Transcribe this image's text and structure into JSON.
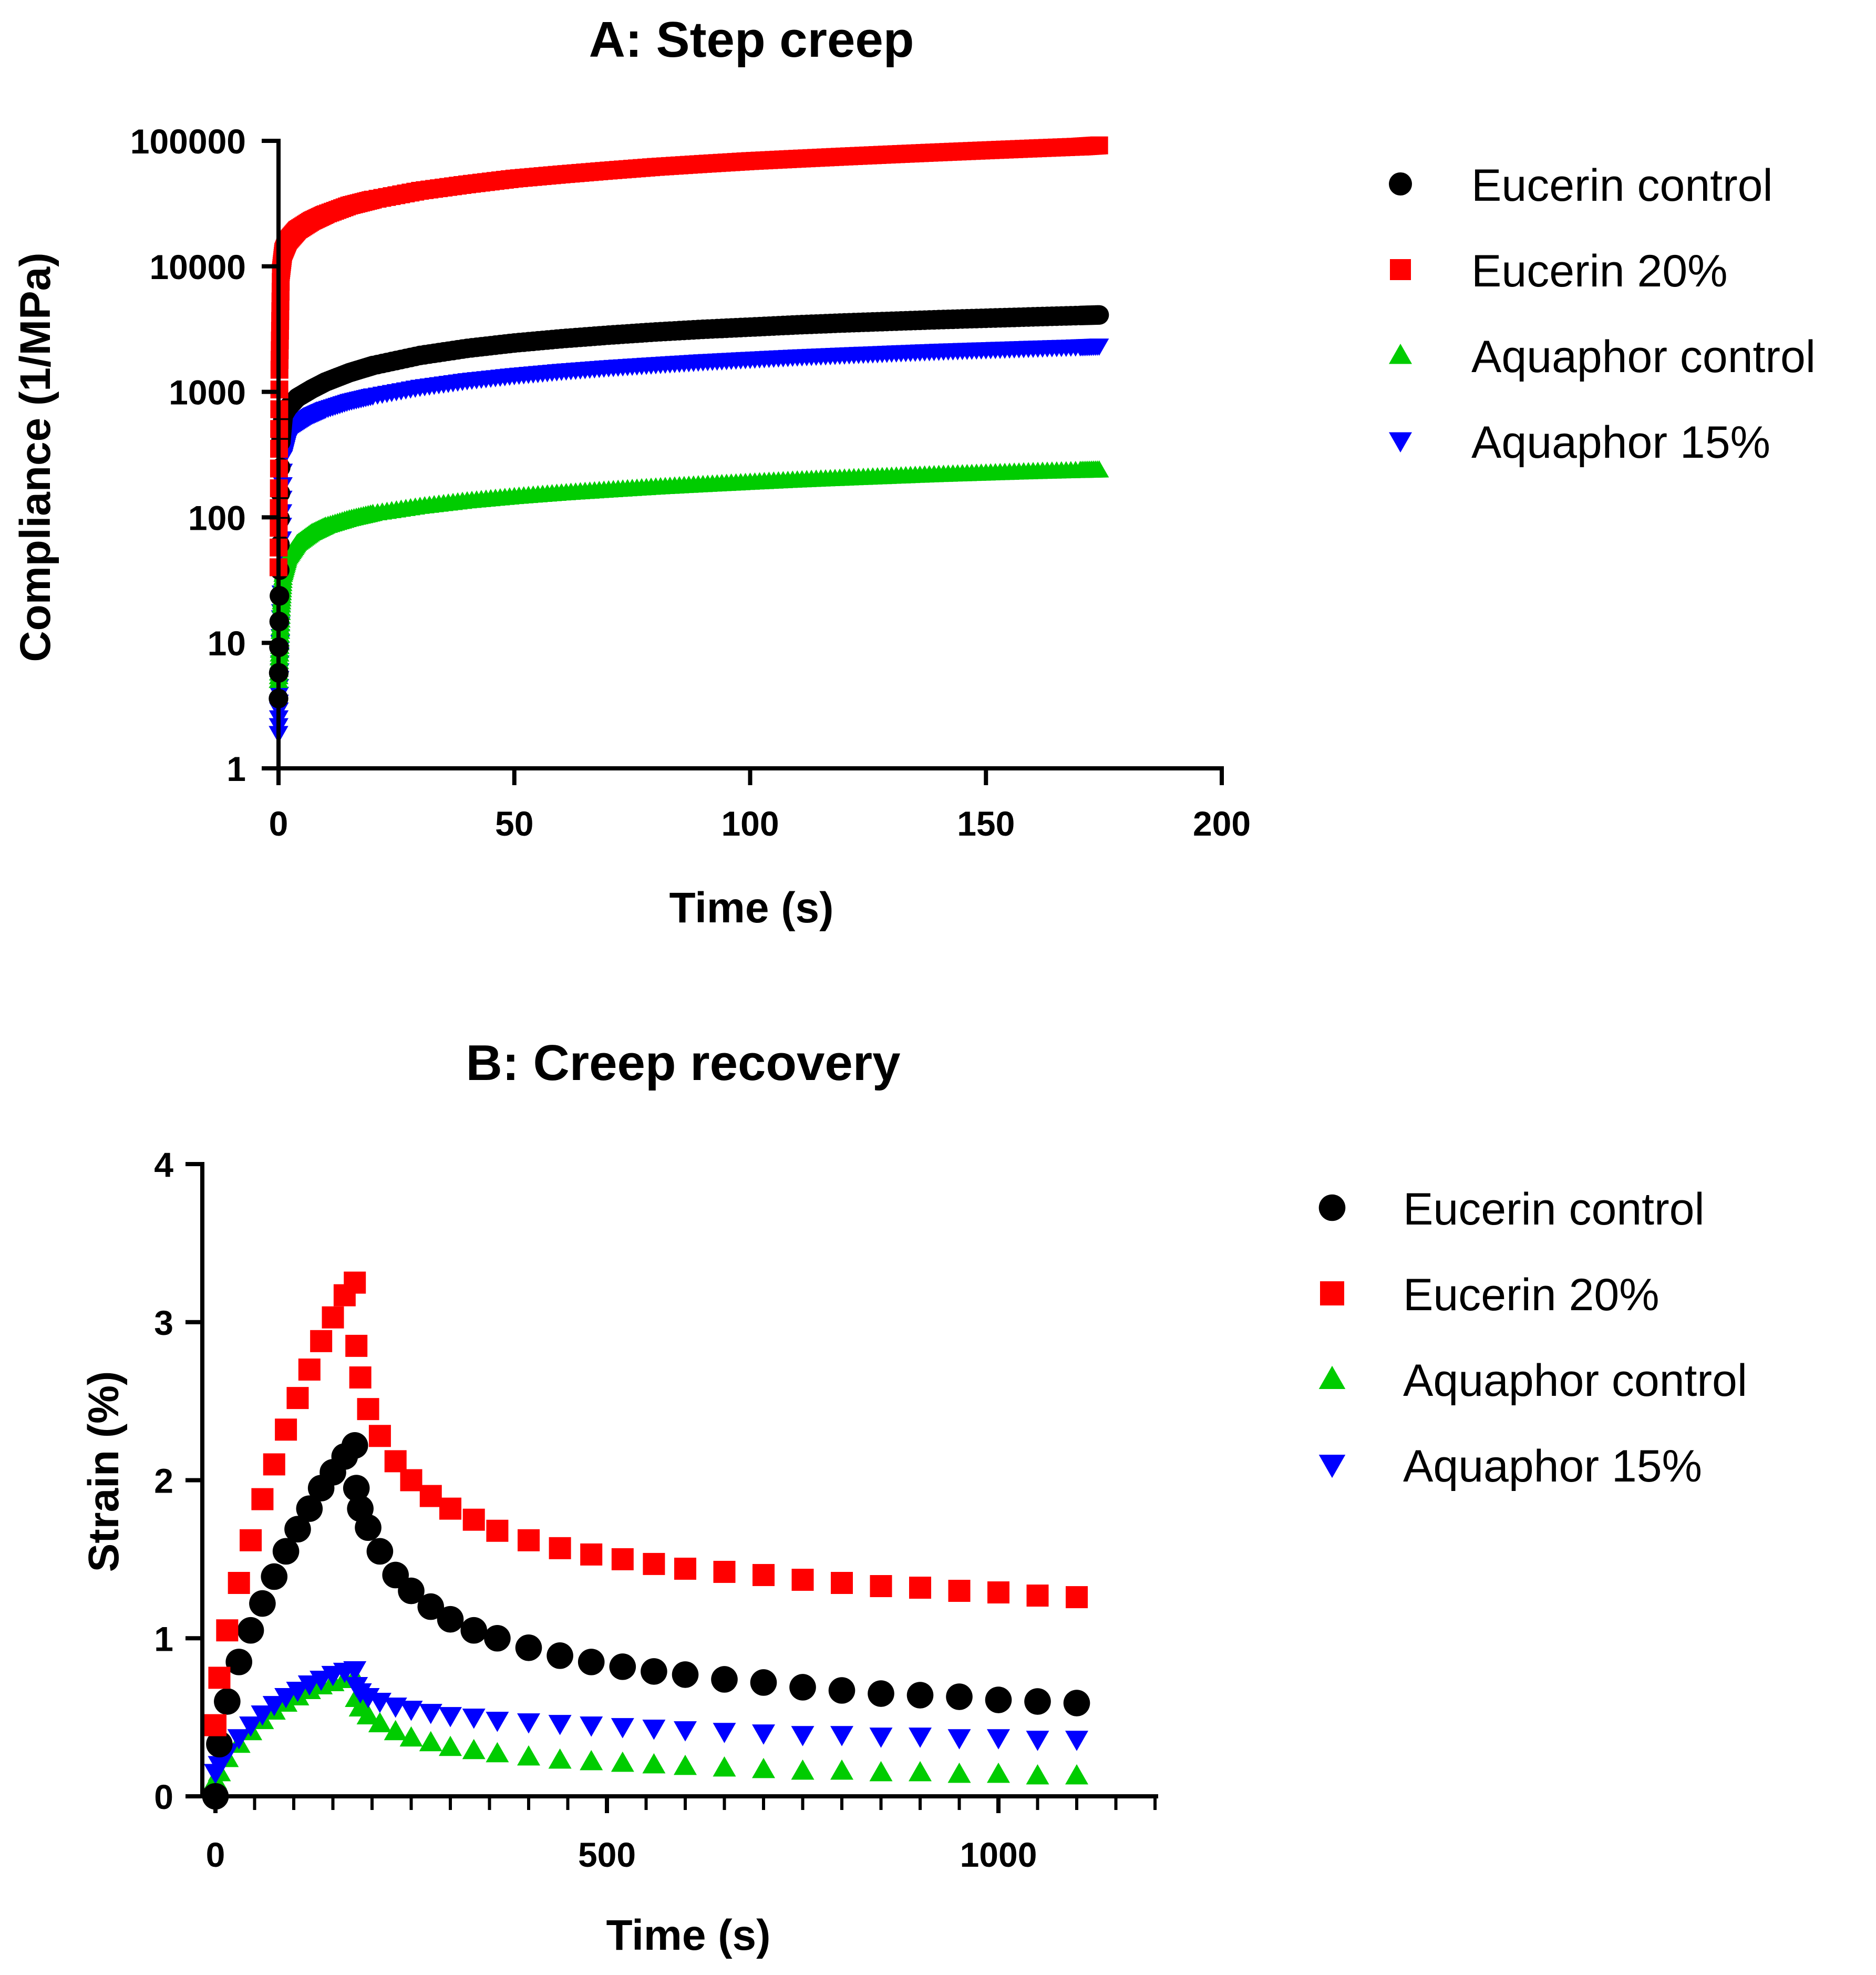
{
  "colors": {
    "eucerin_control": "#000000",
    "eucerin_20": "#ff0000",
    "aquaphor_control": "#00cc00",
    "aquaphor_15": "#0000ff"
  },
  "chart_data": [
    {
      "type": "scatter",
      "title": "A: Step creep",
      "xlabel": "Time (s)",
      "ylabel": "Compliance (1/MPa)",
      "xlim": [
        0,
        200
      ],
      "ylim": [
        1,
        100000
      ],
      "yscale": "log",
      "x_ticks": [
        0,
        50,
        100,
        150,
        200
      ],
      "x_tick_labels": [
        "0",
        "50",
        "100",
        "150",
        "200"
      ],
      "y_ticks": [
        1,
        10,
        100,
        1000,
        10000,
        100000
      ],
      "y_tick_labels": [
        "1",
        "10",
        "100",
        "1000",
        "10000",
        "100000"
      ],
      "legend_position": "right",
      "series": [
        {
          "name": "Eucerin control",
          "marker": "circle",
          "color": "#000000",
          "x": [
            0,
            0.5,
            1,
            2,
            4,
            7,
            10,
            15,
            20,
            30,
            40,
            50,
            60,
            70,
            80,
            90,
            100,
            110,
            120,
            130,
            140,
            150,
            160,
            170,
            174
          ],
          "y": [
            3.6,
            400,
            650,
            750,
            900,
            1050,
            1200,
            1420,
            1620,
            1950,
            2220,
            2450,
            2650,
            2830,
            3000,
            3150,
            3280,
            3420,
            3540,
            3650,
            3760,
            3860,
            3960,
            4060,
            4100
          ]
        },
        {
          "name": "Eucerin 20%",
          "marker": "square",
          "color": "#ff0000",
          "x": [
            0,
            0.2,
            0.5,
            1,
            2,
            4,
            7,
            10,
            15,
            20,
            30,
            40,
            50,
            60,
            70,
            80,
            90,
            100,
            110,
            120,
            130,
            140,
            150,
            160,
            170,
            174
          ],
          "y": [
            40,
            1500,
            9000,
            13000,
            16000,
            19500,
            23000,
            26000,
            30500,
            34000,
            40000,
            45000,
            50000,
            54000,
            58000,
            62000,
            65500,
            69000,
            72000,
            75000,
            78000,
            81000,
            84000,
            87000,
            90000,
            92000
          ]
        },
        {
          "name": "Aquaphor control",
          "marker": "triangle-up",
          "color": "#00cc00",
          "x": [
            0,
            0.3,
            0.6,
            1,
            2,
            4,
            7,
            10,
            15,
            20,
            30,
            40,
            50,
            60,
            70,
            80,
            90,
            100,
            110,
            120,
            130,
            140,
            150,
            160,
            170,
            174
          ],
          "y": [
            5,
            10,
            20,
            35,
            48,
            62,
            75,
            85,
            97,
            107,
            122,
            135,
            146,
            156,
            165,
            174,
            182,
            190,
            198,
            205,
            212,
            219,
            225,
            231,
            236,
            238
          ]
        },
        {
          "name": "Aquaphor 15%",
          "marker": "triangle-down",
          "color": "#0000ff",
          "x": [
            0,
            0.3,
            0.6,
            1,
            2,
            4,
            7,
            10,
            15,
            20,
            30,
            40,
            50,
            60,
            70,
            80,
            90,
            100,
            110,
            120,
            130,
            140,
            150,
            160,
            170,
            174
          ],
          "y": [
            1.9,
            8,
            25,
            300,
            420,
            550,
            650,
            730,
            840,
            930,
            1090,
            1230,
            1350,
            1460,
            1560,
            1650,
            1740,
            1820,
            1900,
            1970,
            2040,
            2110,
            2170,
            2230,
            2290,
            2320
          ]
        }
      ]
    },
    {
      "type": "scatter",
      "title": "B: Creep recovery",
      "xlabel": "Time (s)",
      "ylabel": "Strain (%)",
      "xlim": [
        0,
        1200
      ],
      "ylim": [
        0,
        4
      ],
      "x_ticks": [
        0,
        500,
        1000
      ],
      "x_tick_labels": [
        "0",
        "500",
        "1000"
      ],
      "x_minor_step": 50,
      "y_ticks": [
        0,
        1,
        2,
        3,
        4
      ],
      "y_tick_labels": [
        "0",
        "1",
        "2",
        "3",
        "4"
      ],
      "legend_position": "right",
      "series": [
        {
          "name": "Eucerin control",
          "marker": "circle",
          "color": "#000000",
          "x": [
            0,
            5,
            15,
            30,
            45,
            60,
            75,
            90,
            105,
            120,
            135,
            150,
            165,
            178,
            180,
            185,
            195,
            210,
            230,
            250,
            275,
            300,
            330,
            360,
            400,
            440,
            480,
            520,
            560,
            600,
            650,
            700,
            750,
            800,
            850,
            900,
            950,
            1000,
            1050,
            1100
          ],
          "y": [
            0,
            0.33,
            0.6,
            0.85,
            1.05,
            1.22,
            1.39,
            1.55,
            1.69,
            1.82,
            1.95,
            2.05,
            2.15,
            2.22,
            1.95,
            1.82,
            1.7,
            1.55,
            1.4,
            1.3,
            1.2,
            1.12,
            1.05,
            1.0,
            0.94,
            0.89,
            0.85,
            0.82,
            0.79,
            0.77,
            0.74,
            0.72,
            0.69,
            0.67,
            0.65,
            0.64,
            0.63,
            0.61,
            0.6,
            0.59
          ]
        },
        {
          "name": "Eucerin 20%",
          "marker": "square",
          "color": "#ff0000",
          "x": [
            0,
            5,
            15,
            30,
            45,
            60,
            75,
            90,
            105,
            120,
            135,
            150,
            165,
            178,
            180,
            185,
            195,
            210,
            230,
            250,
            275,
            300,
            330,
            360,
            400,
            440,
            480,
            520,
            560,
            600,
            650,
            700,
            750,
            800,
            850,
            900,
            950,
            1000,
            1050,
            1100
          ],
          "y": [
            0.45,
            0.75,
            1.05,
            1.35,
            1.62,
            1.88,
            2.1,
            2.32,
            2.52,
            2.7,
            2.88,
            3.03,
            3.17,
            3.25,
            2.85,
            2.65,
            2.45,
            2.28,
            2.12,
            2.0,
            1.9,
            1.82,
            1.75,
            1.68,
            1.62,
            1.57,
            1.53,
            1.5,
            1.47,
            1.44,
            1.42,
            1.4,
            1.37,
            1.35,
            1.33,
            1.32,
            1.3,
            1.29,
            1.27,
            1.26
          ]
        },
        {
          "name": "Aquaphor control",
          "marker": "triangle-up",
          "color": "#00cc00",
          "x": [
            0,
            5,
            15,
            30,
            45,
            60,
            75,
            90,
            105,
            120,
            135,
            150,
            165,
            178,
            180,
            185,
            195,
            210,
            230,
            250,
            275,
            300,
            330,
            360,
            400,
            440,
            480,
            520,
            560,
            600,
            650,
            700,
            750,
            800,
            850,
            900,
            950,
            1000,
            1050,
            1100
          ],
          "y": [
            0.1,
            0.15,
            0.24,
            0.33,
            0.41,
            0.48,
            0.54,
            0.59,
            0.63,
            0.67,
            0.7,
            0.72,
            0.74,
            0.75,
            0.62,
            0.56,
            0.51,
            0.46,
            0.41,
            0.37,
            0.34,
            0.31,
            0.29,
            0.27,
            0.25,
            0.23,
            0.22,
            0.21,
            0.2,
            0.19,
            0.18,
            0.17,
            0.16,
            0.16,
            0.15,
            0.15,
            0.14,
            0.14,
            0.13,
            0.13
          ]
        },
        {
          "name": "Aquaphor 15%",
          "marker": "triangle-down",
          "color": "#0000ff",
          "x": [
            0,
            5,
            15,
            30,
            45,
            60,
            75,
            90,
            105,
            120,
            135,
            150,
            165,
            178,
            180,
            185,
            195,
            210,
            230,
            250,
            275,
            300,
            330,
            360,
            400,
            440,
            480,
            520,
            560,
            600,
            650,
            700,
            750,
            800,
            850,
            900,
            950,
            1000,
            1050,
            1100
          ],
          "y": [
            0.15,
            0.2,
            0.28,
            0.37,
            0.45,
            0.52,
            0.58,
            0.63,
            0.67,
            0.71,
            0.74,
            0.77,
            0.79,
            0.8,
            0.7,
            0.66,
            0.63,
            0.6,
            0.57,
            0.55,
            0.53,
            0.51,
            0.5,
            0.48,
            0.47,
            0.46,
            0.45,
            0.44,
            0.43,
            0.42,
            0.41,
            0.4,
            0.39,
            0.39,
            0.38,
            0.38,
            0.37,
            0.37,
            0.36,
            0.36
          ]
        }
      ]
    }
  ]
}
